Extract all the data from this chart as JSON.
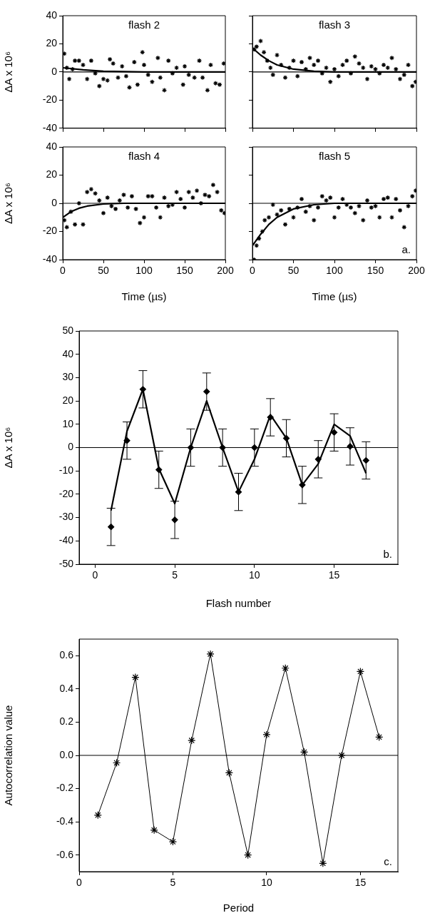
{
  "chart_data": [
    {
      "type": "scatter",
      "title": "flash 2",
      "ylabel": "ΔA x 10⁶",
      "xlim": [
        0,
        200
      ],
      "ylim": [
        -40,
        40
      ],
      "xticks": [
        0,
        50,
        100,
        150,
        200
      ],
      "yticks": [
        -40,
        -20,
        0,
        20,
        40
      ],
      "tick_labels": "y",
      "ref_lines": [
        {
          "axis": "y",
          "value": 0
        }
      ],
      "series": [
        {
          "type": "scatter",
          "marker": "cross",
          "color": "#000000",
          "x": [
            2,
            5,
            8,
            12,
            15,
            20,
            25,
            30,
            35,
            40,
            45,
            50,
            55,
            58,
            62,
            68,
            73,
            78,
            82,
            88,
            92,
            98,
            100,
            105,
            110,
            117,
            120,
            125,
            130,
            135,
            140,
            148,
            150,
            155,
            162,
            168,
            172,
            178,
            182,
            188,
            193,
            198
          ],
          "values": [
            13,
            3,
            -5,
            2,
            8,
            8,
            5,
            -5,
            8,
            -1,
            -10,
            -5,
            -6,
            9,
            6,
            -4,
            4,
            -3,
            -11,
            7,
            -9,
            14,
            5,
            -2,
            -7,
            10,
            -4,
            -13,
            8,
            -1,
            3,
            -9,
            4,
            -2,
            -4,
            8,
            -4,
            -13,
            5,
            -8,
            -9,
            6
          ]
        },
        {
          "type": "line",
          "marker": "none",
          "color": "#000000",
          "x": [
            0,
            25,
            50,
            100,
            150,
            200
          ],
          "values": [
            3,
            1.5,
            0.5,
            0,
            0,
            0
          ]
        }
      ]
    },
    {
      "type": "scatter",
      "title": "flash 3",
      "xlim": [
        0,
        200
      ],
      "ylim": [
        -40,
        40
      ],
      "xticks": [
        0,
        50,
        100,
        150,
        200
      ],
      "yticks": [
        -40,
        -20,
        0,
        20,
        40
      ],
      "tick_labels": false,
      "ref_lines": [
        {
          "axis": "y",
          "value": 0
        }
      ],
      "series": [
        {
          "type": "scatter",
          "marker": "cross",
          "color": "#000000",
          "x": [
            2,
            5,
            10,
            14,
            18,
            22,
            25,
            30,
            35,
            40,
            45,
            50,
            55,
            60,
            65,
            70,
            75,
            80,
            85,
            90,
            95,
            100,
            105,
            110,
            115,
            120,
            125,
            130,
            135,
            140,
            145,
            150,
            155,
            160,
            165,
            170,
            175,
            180,
            185,
            190,
            195,
            199
          ],
          "values": [
            16,
            18,
            22,
            14,
            8,
            3,
            -2,
            12,
            5,
            -4,
            3,
            8,
            -3,
            7,
            2,
            10,
            5,
            8,
            -1,
            3,
            -7,
            2,
            -3,
            5,
            8,
            -1,
            11,
            6,
            3,
            -5,
            4,
            2,
            -1,
            5,
            3,
            10,
            2,
            -5,
            -2,
            5,
            -10,
            -7
          ]
        },
        {
          "type": "line",
          "marker": "none",
          "color": "#000000",
          "x": [
            0,
            10,
            20,
            30,
            50,
            75,
            100,
            200
          ],
          "values": [
            17,
            12,
            8,
            5,
            2,
            0.5,
            0,
            0
          ]
        }
      ]
    },
    {
      "type": "scatter",
      "title": "flash 4",
      "ylabel": "ΔA x 10⁶",
      "xlabel": "Time (µs)",
      "xlim": [
        0,
        200
      ],
      "ylim": [
        -40,
        40
      ],
      "xticks": [
        0,
        50,
        100,
        150,
        200
      ],
      "yticks": [
        -40,
        -20,
        0,
        20,
        40
      ],
      "ref_lines": [
        {
          "axis": "y",
          "value": 0
        }
      ],
      "series": [
        {
          "type": "scatter",
          "marker": "cross",
          "color": "#000000",
          "x": [
            2,
            5,
            10,
            15,
            20,
            25,
            30,
            35,
            40,
            45,
            50,
            55,
            60,
            65,
            70,
            75,
            80,
            85,
            90,
            95,
            100,
            105,
            110,
            115,
            120,
            125,
            130,
            135,
            140,
            145,
            150,
            155,
            160,
            165,
            170,
            175,
            180,
            185,
            190,
            195,
            199
          ],
          "values": [
            -12,
            -17,
            -6,
            -15,
            0,
            -15,
            8,
            10,
            7,
            2,
            -7,
            4,
            -2,
            -4,
            2,
            6,
            -3,
            5,
            -4,
            -14,
            -10,
            5,
            5,
            -3,
            -10,
            4,
            -2,
            -1,
            8,
            3,
            -3,
            8,
            4,
            9,
            0,
            6,
            5,
            13,
            8,
            -5,
            -7
          ]
        },
        {
          "type": "line",
          "marker": "none",
          "color": "#000000",
          "x": [
            0,
            10,
            20,
            30,
            50,
            75,
            200
          ],
          "values": [
            -10,
            -6,
            -3.5,
            -2,
            -0.5,
            0,
            0
          ]
        }
      ]
    },
    {
      "type": "scatter",
      "title": "flash 5",
      "xlabel": "Time (µs)",
      "annotations": [
        "a."
      ],
      "xlim": [
        0,
        200
      ],
      "ylim": [
        -40,
        40
      ],
      "xticks": [
        0,
        50,
        100,
        150,
        200
      ],
      "yticks": [
        -40,
        -20,
        0,
        20,
        40
      ],
      "tick_labels": "x",
      "ref_lines": [
        {
          "axis": "y",
          "value": 0
        }
      ],
      "series": [
        {
          "type": "scatter",
          "marker": "cross",
          "color": "#000000",
          "x": [
            2,
            5,
            8,
            12,
            15,
            20,
            25,
            30,
            35,
            40,
            45,
            50,
            55,
            60,
            65,
            70,
            75,
            80,
            85,
            90,
            95,
            100,
            105,
            110,
            115,
            120,
            125,
            130,
            135,
            140,
            145,
            150,
            155,
            160,
            165,
            170,
            175,
            180,
            185,
            190,
            195,
            199
          ],
          "values": [
            -40,
            -30,
            -25,
            -20,
            -12,
            -10,
            -1,
            -8,
            -5,
            -15,
            -4,
            -10,
            -3,
            3,
            -6,
            -2,
            -12,
            -3,
            5,
            2,
            4,
            -10,
            -3,
            3,
            -1,
            -3,
            -7,
            -2,
            -12,
            2,
            -3,
            -2,
            -10,
            3,
            4,
            -10,
            3,
            -5,
            -17,
            -2,
            5,
            9
          ]
        },
        {
          "type": "line",
          "marker": "none",
          "color": "#000000",
          "x": [
            0,
            10,
            20,
            30,
            50,
            75,
            100,
            200
          ],
          "values": [
            -30,
            -22,
            -15,
            -10,
            -4,
            -1,
            0,
            0
          ]
        }
      ]
    },
    {
      "type": "scatter",
      "xlabel": "Flash number",
      "ylabel": "ΔA x 10⁶",
      "annotations": [
        "b."
      ],
      "xlim": [
        -1,
        19
      ],
      "ylim": [
        -50,
        50
      ],
      "xticks": [
        0,
        5,
        10,
        15
      ],
      "yticks": [
        -50,
        -40,
        -30,
        -20,
        -10,
        0,
        10,
        20,
        30,
        40,
        50
      ],
      "ref_lines": [
        {
          "axis": "y",
          "value": 0
        }
      ],
      "series": [
        {
          "type": "scatter",
          "marker": "diamond",
          "color": "#000000",
          "x": [
            1,
            2,
            3,
            4,
            5,
            6,
            7,
            8,
            9,
            10,
            11,
            12,
            13,
            14,
            15,
            16,
            17
          ],
          "values": [
            -34,
            3,
            25,
            -9.5,
            -31,
            0,
            24,
            0,
            -19,
            0,
            13,
            4,
            -16,
            -5,
            6.5,
            0.5,
            -5.5
          ],
          "errors": [
            8,
            8,
            8,
            8,
            8,
            8,
            8,
            8,
            8,
            8,
            8,
            8,
            8,
            8,
            8,
            8,
            8
          ]
        },
        {
          "type": "line",
          "marker": "none",
          "color": "#000000",
          "x": [
            1,
            2,
            3,
            4,
            5,
            6,
            7,
            8,
            9,
            10,
            11,
            12,
            13,
            14,
            15,
            16,
            17
          ],
          "values": [
            -27,
            7,
            25,
            -9,
            -24,
            0,
            20,
            0,
            -19,
            -5,
            14,
            4,
            -16,
            -7,
            10,
            5,
            -11
          ]
        }
      ]
    },
    {
      "type": "line",
      "xlabel": "Period",
      "ylabel": "Autocorrelation value",
      "annotations": [
        "c."
      ],
      "xlim": [
        0,
        17
      ],
      "ylim": [
        -0.7,
        0.7
      ],
      "xticks": [
        0,
        5,
        10,
        15
      ],
      "yticks": [
        -0.6,
        -0.4,
        -0.2,
        {
          "value": 0,
          "label": "0.0"
        },
        0.2,
        0.4,
        0.6
      ],
      "marker": "cross",
      "ref_lines": [
        {
          "axis": "y",
          "value": 0
        }
      ],
      "series": [
        {
          "color": "#000000",
          "x": [
            1,
            2,
            3,
            4,
            5,
            6,
            7,
            8,
            9,
            10,
            11,
            12,
            13,
            14,
            15,
            16
          ],
          "values": [
            -0.36,
            -0.045,
            0.47,
            -0.45,
            -0.52,
            0.09,
            0.61,
            -0.105,
            -0.6,
            0.125,
            0.525,
            0.02,
            -0.65,
            0,
            0.505,
            0.11
          ]
        }
      ]
    }
  ]
}
